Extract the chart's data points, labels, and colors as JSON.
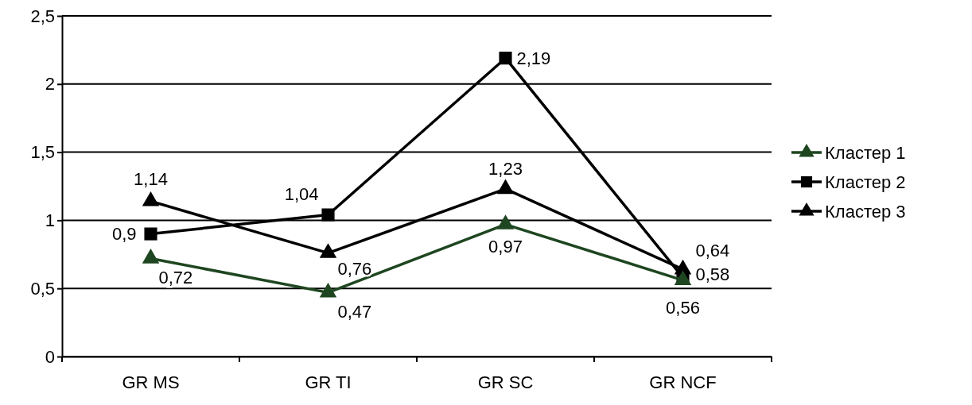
{
  "chart_data": {
    "type": "line",
    "categories": [
      "GR MS",
      "GR TI",
      "GR SC",
      "GR NCF"
    ],
    "series": [
      {
        "name": "Кластер 1",
        "color": "#1e4620",
        "marker": "triangle",
        "values": [
          0.72,
          0.47,
          0.97,
          0.56
        ],
        "value_labels": [
          "0,72",
          "0,47",
          "0,97",
          "0,56"
        ]
      },
      {
        "name": "Кластер 2",
        "color": "#000000",
        "marker": "square",
        "values": [
          0.9,
          1.04,
          2.19,
          0.58
        ],
        "value_labels": [
          "0,9",
          "1,04",
          "2,19",
          "0,58"
        ]
      },
      {
        "name": "Кластер 3",
        "color": "#000000",
        "marker": "triangle",
        "values": [
          1.14,
          0.76,
          1.23,
          0.64
        ],
        "value_labels": [
          "1,14",
          "0,76",
          "1,23",
          "0,64"
        ]
      }
    ],
    "ylim": [
      0,
      2.5
    ],
    "yticks": [
      0,
      {
        "value": 0.5,
        "label": "0,5"
      },
      1,
      {
        "value": 1.5,
        "label": "1,5"
      },
      2,
      {
        "value": 2.5,
        "label": "2,5"
      }
    ],
    "grid": "y",
    "legend": "right",
    "line_style": "solid"
  }
}
